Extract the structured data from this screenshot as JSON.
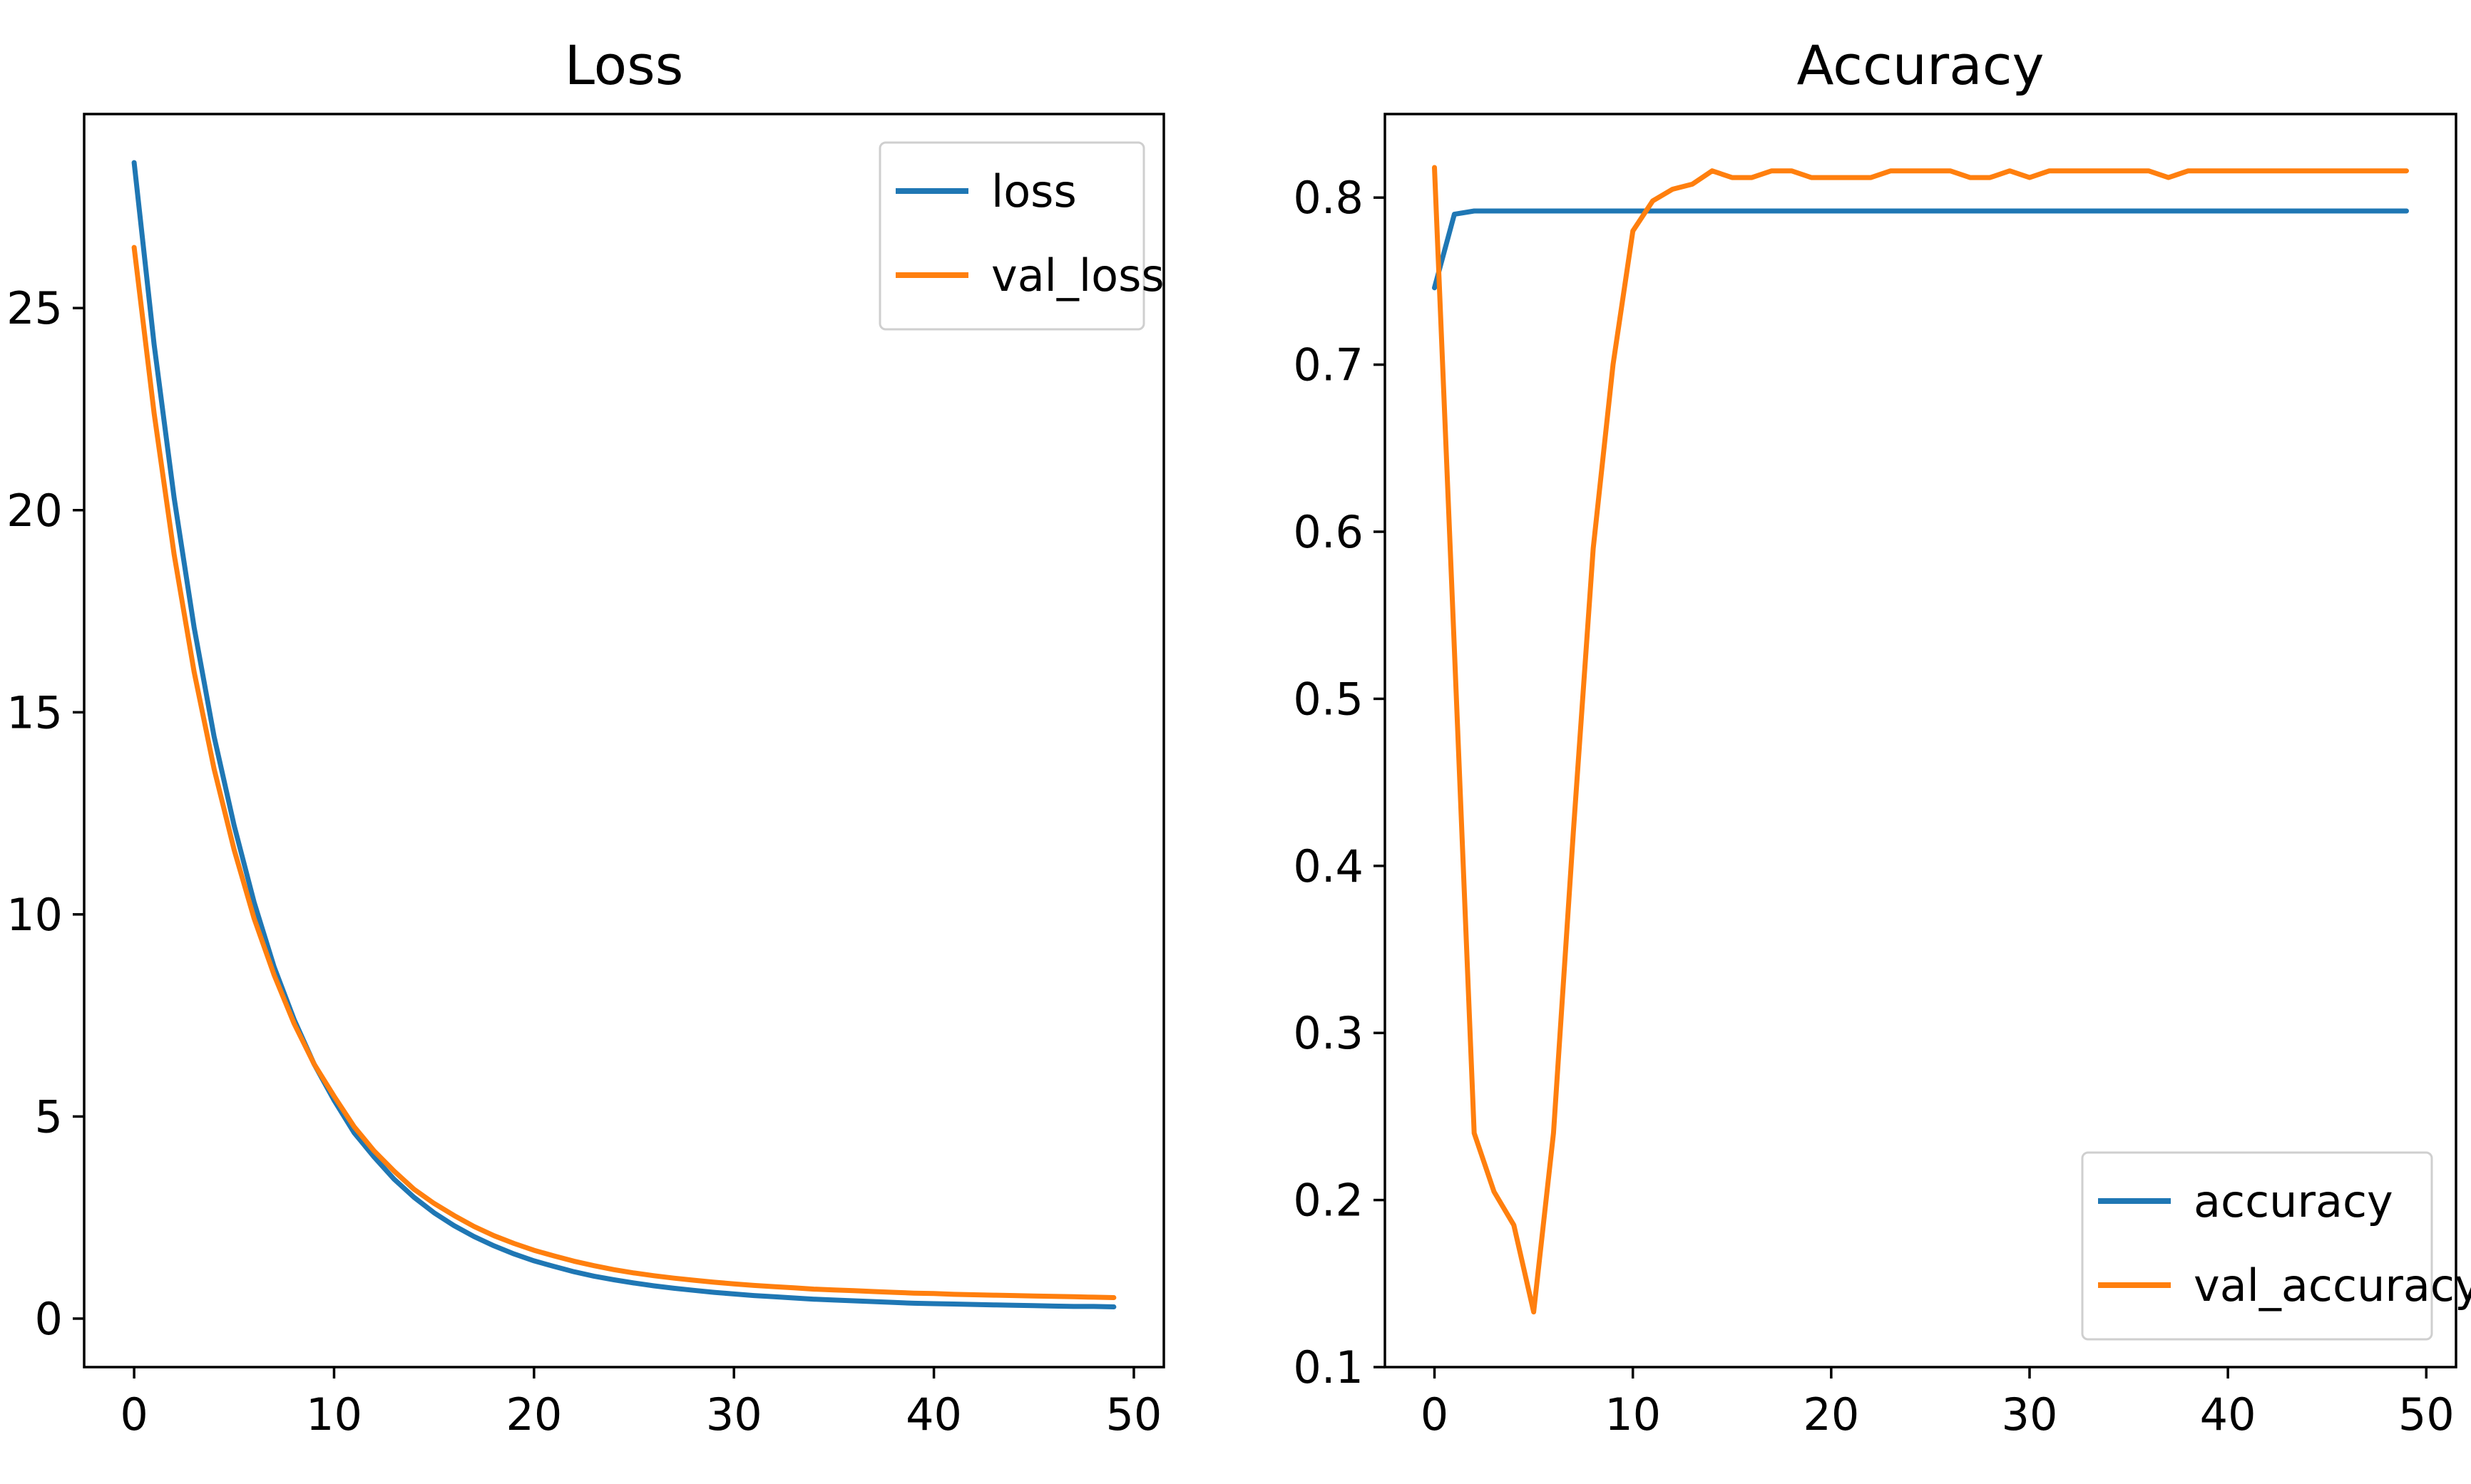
{
  "colors": {
    "blue": "#1f77b4",
    "orange": "#ff7f0e"
  },
  "chart_data": [
    {
      "type": "line",
      "title": "Loss",
      "xlabel": "",
      "ylabel": "",
      "xlim": [
        -2.5,
        51.5
      ],
      "ylim": [
        -1.2,
        29.8
      ],
      "xticks": [
        0,
        10,
        20,
        30,
        40,
        50
      ],
      "yticks": [
        0,
        5,
        10,
        15,
        20,
        25
      ],
      "grid": false,
      "legend_position": "top-right",
      "series": [
        {
          "name": "loss",
          "color": "#1f77b4",
          "x": [
            0,
            1,
            2,
            3,
            4,
            5,
            6,
            7,
            8,
            9,
            10,
            11,
            12,
            13,
            14,
            15,
            16,
            17,
            18,
            19,
            20,
            21,
            22,
            23,
            24,
            25,
            26,
            27,
            28,
            29,
            30,
            31,
            32,
            33,
            34,
            35,
            36,
            37,
            38,
            39,
            40,
            41,
            42,
            43,
            44,
            45,
            46,
            47,
            48,
            49
          ],
          "values": [
            28.6,
            24.1,
            20.3,
            17.1,
            14.4,
            12.2,
            10.3,
            8.7,
            7.4,
            6.3,
            5.4,
            4.6,
            4.0,
            3.45,
            3.0,
            2.62,
            2.3,
            2.03,
            1.8,
            1.6,
            1.43,
            1.29,
            1.16,
            1.05,
            0.96,
            0.88,
            0.81,
            0.75,
            0.7,
            0.65,
            0.61,
            0.57,
            0.54,
            0.51,
            0.48,
            0.46,
            0.44,
            0.42,
            0.4,
            0.38,
            0.37,
            0.36,
            0.35,
            0.34,
            0.33,
            0.32,
            0.31,
            0.3,
            0.3,
            0.29
          ]
        },
        {
          "name": "val_loss",
          "color": "#ff7f0e",
          "x": [
            0,
            1,
            2,
            3,
            4,
            5,
            6,
            7,
            8,
            9,
            10,
            11,
            12,
            13,
            14,
            15,
            16,
            17,
            18,
            19,
            20,
            21,
            22,
            23,
            24,
            25,
            26,
            27,
            28,
            29,
            30,
            31,
            32,
            33,
            34,
            35,
            36,
            37,
            38,
            39,
            40,
            41,
            42,
            43,
            44,
            45,
            46,
            47,
            48,
            49
          ],
          "values": [
            26.5,
            22.4,
            18.9,
            16.0,
            13.6,
            11.6,
            9.9,
            8.5,
            7.3,
            6.3,
            5.5,
            4.75,
            4.15,
            3.65,
            3.2,
            2.85,
            2.55,
            2.28,
            2.05,
            1.86,
            1.69,
            1.55,
            1.42,
            1.31,
            1.21,
            1.13,
            1.06,
            1.0,
            0.95,
            0.9,
            0.86,
            0.82,
            0.79,
            0.76,
            0.73,
            0.71,
            0.69,
            0.67,
            0.65,
            0.63,
            0.62,
            0.6,
            0.59,
            0.58,
            0.57,
            0.56,
            0.55,
            0.54,
            0.53,
            0.52
          ]
        }
      ]
    },
    {
      "type": "line",
      "title": "Accuracy",
      "xlabel": "",
      "ylabel": "",
      "xlim": [
        -2.5,
        51.5
      ],
      "ylim": [
        0.1,
        0.85
      ],
      "xticks": [
        0,
        10,
        20,
        30,
        40,
        50
      ],
      "yticks": [
        0.1,
        0.2,
        0.3,
        0.4,
        0.5,
        0.6,
        0.7,
        0.8
      ],
      "grid": false,
      "legend_position": "bottom-right",
      "series": [
        {
          "name": "accuracy",
          "color": "#1f77b4",
          "x": [
            0,
            1,
            2,
            3,
            4,
            5,
            6,
            7,
            8,
            9,
            10,
            11,
            12,
            13,
            14,
            15,
            16,
            17,
            18,
            19,
            20,
            21,
            22,
            23,
            24,
            25,
            26,
            27,
            28,
            29,
            30,
            31,
            32,
            33,
            34,
            35,
            36,
            37,
            38,
            39,
            40,
            41,
            42,
            43,
            44,
            45,
            46,
            47,
            48,
            49
          ],
          "values": [
            0.746,
            0.79,
            0.792,
            0.792,
            0.792,
            0.792,
            0.792,
            0.792,
            0.792,
            0.792,
            0.792,
            0.792,
            0.792,
            0.792,
            0.792,
            0.792,
            0.792,
            0.792,
            0.792,
            0.792,
            0.792,
            0.792,
            0.792,
            0.792,
            0.792,
            0.792,
            0.792,
            0.792,
            0.792,
            0.792,
            0.792,
            0.792,
            0.792,
            0.792,
            0.792,
            0.792,
            0.792,
            0.792,
            0.792,
            0.792,
            0.792,
            0.792,
            0.792,
            0.792,
            0.792,
            0.792,
            0.792,
            0.792,
            0.792,
            0.792
          ]
        },
        {
          "name": "val_accuracy",
          "color": "#ff7f0e",
          "x": [
            0,
            1,
            2,
            3,
            4,
            5,
            6,
            7,
            8,
            9,
            10,
            11,
            12,
            13,
            14,
            15,
            16,
            17,
            18,
            19,
            20,
            21,
            22,
            23,
            24,
            25,
            26,
            27,
            28,
            29,
            30,
            31,
            32,
            33,
            34,
            35,
            36,
            37,
            38,
            39,
            40,
            41,
            42,
            43,
            44,
            45,
            46,
            47,
            48,
            49
          ],
          "values": [
            0.818,
            0.53,
            0.24,
            0.205,
            0.185,
            0.133,
            0.24,
            0.42,
            0.59,
            0.7,
            0.78,
            0.798,
            0.805,
            0.808,
            0.816,
            0.812,
            0.812,
            0.816,
            0.816,
            0.812,
            0.812,
            0.812,
            0.812,
            0.816,
            0.816,
            0.816,
            0.816,
            0.812,
            0.812,
            0.816,
            0.812,
            0.816,
            0.816,
            0.816,
            0.816,
            0.816,
            0.816,
            0.812,
            0.816,
            0.816,
            0.816,
            0.816,
            0.816,
            0.816,
            0.816,
            0.816,
            0.816,
            0.816,
            0.816,
            0.816
          ]
        }
      ]
    }
  ]
}
